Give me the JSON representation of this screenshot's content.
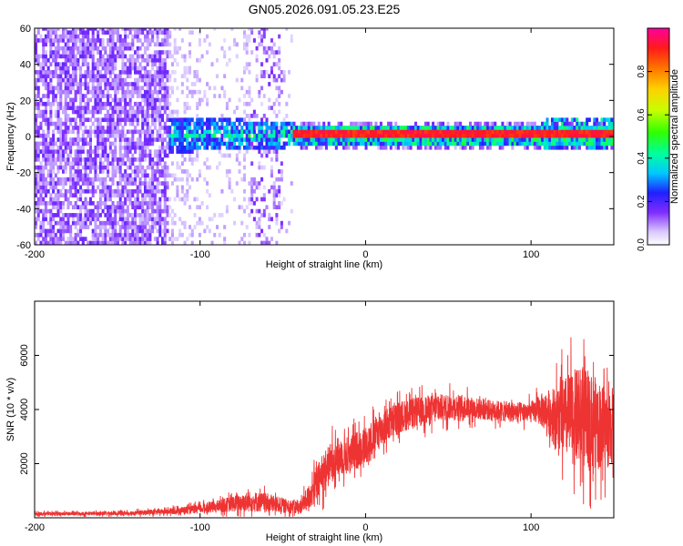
{
  "title": "GN05.2026.091.05.23.E25",
  "chart_data": [
    {
      "type": "heatmap",
      "name": "spectrogram",
      "xlabel": "Height of straight line (km)",
      "ylabel": "Frequency (Hz)",
      "xlim": [
        -200,
        150
      ],
      "ylim": [
        -60,
        60
      ],
      "xticks": [
        -200,
        -100,
        0,
        100
      ],
      "yticks": [
        60,
        40,
        20,
        0,
        -20,
        -40,
        -60
      ],
      "colorbar": {
        "label": "Normalized spectral amplitude",
        "range": [
          0.0,
          1.0
        ],
        "ticks": [
          0.0,
          0.2,
          0.4,
          0.6,
          0.8
        ],
        "tick_labels": [
          "0.0",
          "0.2",
          "0.4",
          "0.6",
          "0.8"
        ]
      },
      "regions": [
        {
          "x": [
            -200,
            -120
          ],
          "freq_span": [
            -60,
            60
          ],
          "amplitude": 0.12,
          "note": "broadband noise"
        },
        {
          "x": [
            -120,
            -45
          ],
          "freq_span": [
            -60,
            60
          ],
          "amplitude": 0.04,
          "note": "sparse noise"
        },
        {
          "x": [
            -120,
            -45
          ],
          "freq_span": [
            -10,
            8
          ],
          "amplitude": 0.35,
          "note": "emerging signal band"
        },
        {
          "x": [
            -45,
            150
          ],
          "freq_span": [
            -3,
            3
          ],
          "amplitude": 0.95,
          "note": "strong narrow signal at 0 Hz"
        }
      ]
    },
    {
      "type": "line",
      "name": "snr",
      "xlabel": "Height of straight line (km)",
      "ylabel": "SNR (10 * v/v)",
      "xlim": [
        -200,
        150
      ],
      "ylim": [
        0,
        8000
      ],
      "xticks": [
        -200,
        -100,
        0,
        100
      ],
      "yticks": [
        2000,
        4000,
        6000
      ],
      "color": "#ee3333",
      "series": [
        {
          "name": "SNR",
          "x": [
            -200,
            -180,
            -160,
            -140,
            -120,
            -100,
            -90,
            -80,
            -70,
            -60,
            -50,
            -40,
            -35,
            -30,
            -25,
            -20,
            -15,
            -10,
            0,
            10,
            20,
            30,
            40,
            50,
            60,
            70,
            80,
            90,
            100,
            105,
            110,
            115,
            120,
            125,
            130,
            135,
            140,
            145,
            150
          ],
          "y": [
            150,
            150,
            160,
            180,
            230,
            330,
            420,
            520,
            600,
            560,
            450,
            380,
            700,
            1200,
            1700,
            2100,
            2300,
            2300,
            2700,
            3300,
            3700,
            3900,
            4000,
            4100,
            4100,
            4000,
            3950,
            3900,
            3900,
            4000,
            3900,
            3700,
            3700,
            3700,
            3700,
            3600,
            3500,
            3300,
            3400
          ],
          "spread": [
            120,
            120,
            130,
            150,
            200,
            300,
            400,
            550,
            700,
            650,
            500,
            450,
            800,
            1200,
            1400,
            1400,
            1300,
            1300,
            1300,
            1200,
            1100,
            1000,
            1000,
            900,
            800,
            700,
            700,
            700,
            700,
            1000,
            1500,
            2100,
            2700,
            3200,
            3400,
            3300,
            3000,
            2800,
            2600
          ]
        }
      ]
    }
  ]
}
